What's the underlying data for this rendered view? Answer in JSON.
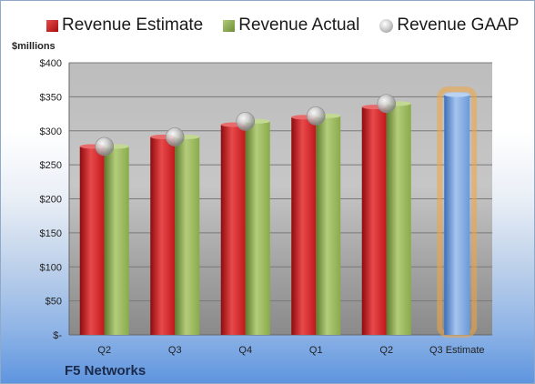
{
  "company": "F5 Networks",
  "legend": {
    "estimate": "Revenue Estimate",
    "actual": "Revenue Actual",
    "gaap": "Revenue GAAP"
  },
  "y_unit": "$millions",
  "colors": {
    "estimate": "#c0181b",
    "actual": "#8aaa4b",
    "forecast": "#6a9ad8",
    "forecast_glow": "#f0a540",
    "plot_background": "#bdbdbd"
  },
  "chart_data": {
    "type": "bar",
    "categories": [
      "Q2",
      "Q3",
      "Q4",
      "Q1",
      "Q2",
      "Q3 Estimate"
    ],
    "series": [
      {
        "name": "Revenue Estimate",
        "values": [
          277,
          291,
          309,
          320,
          335,
          null
        ]
      },
      {
        "name": "Revenue Actual",
        "values": [
          277,
          291,
          314,
          322,
          340,
          null
        ]
      },
      {
        "name": "Revenue GAAP",
        "values": [
          277,
          291,
          314,
          322,
          340,
          null
        ]
      },
      {
        "name": "",
        "values": [
          null,
          null,
          null,
          null,
          null,
          353
        ]
      }
    ],
    "ylim": [
      0,
      400
    ],
    "yticks": [
      0,
      50,
      100,
      150,
      200,
      250,
      300,
      350,
      400
    ],
    "ytick_labels": [
      "$-",
      "$50",
      "$100",
      "$150",
      "$200",
      "$250",
      "$300",
      "$350",
      "$400"
    ],
    "grid": true,
    "legend_position": "top"
  }
}
